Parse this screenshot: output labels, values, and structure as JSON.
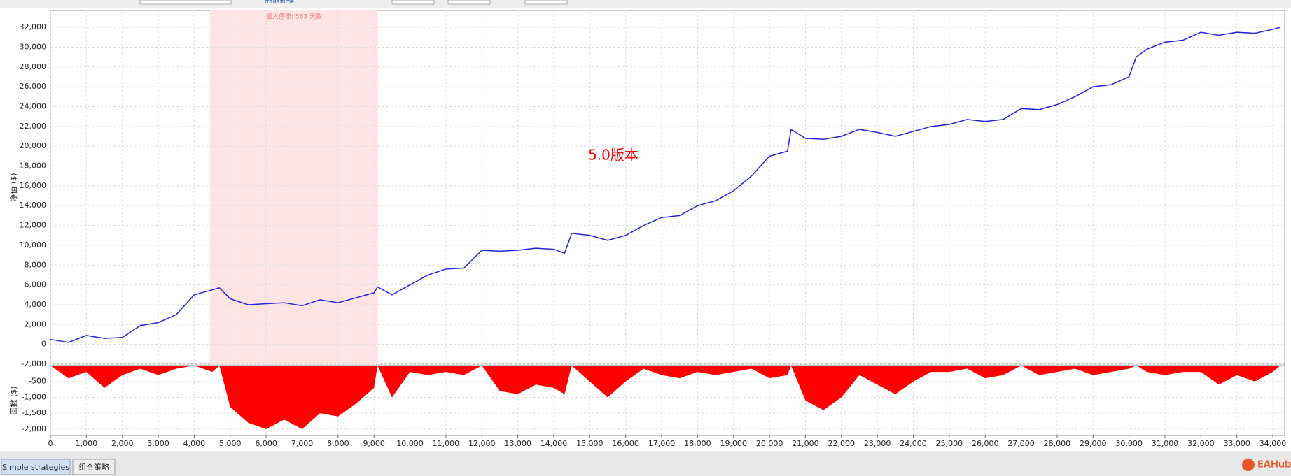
{
  "toolbar": {
    "labels": [
      "trades",
      "time"
    ]
  },
  "tabs": [
    "Simple strategies",
    "组合策略"
  ],
  "logo": "EAHub",
  "chart_data": [
    {
      "type": "line",
      "ylabel": "净值 ($)",
      "color": "#2222dd",
      "grid": true,
      "annotation": "5.0版本",
      "highlight": {
        "label": "最大停滞: 563 天数",
        "x": [
          4440,
          9110
        ],
        "color": "#ffe4e4"
      },
      "x": [
        0,
        500,
        1000,
        1500,
        2000,
        2500,
        3000,
        3500,
        4000,
        4500,
        4700,
        5000,
        5500,
        6000,
        6500,
        7000,
        7500,
        8000,
        8500,
        9000,
        9100,
        9500,
        10000,
        10500,
        11000,
        11500,
        12000,
        12500,
        13000,
        13500,
        14000,
        14300,
        14500,
        15000,
        15500,
        16000,
        16500,
        17000,
        17500,
        18000,
        18500,
        19000,
        19500,
        20000,
        20500,
        20600,
        21000,
        21500,
        22000,
        22500,
        23000,
        23500,
        24000,
        24500,
        25000,
        25500,
        26000,
        26500,
        27000,
        27500,
        28000,
        28500,
        29000,
        29500,
        30000,
        30200,
        30500,
        31000,
        31500,
        32000,
        32500,
        33000,
        33500,
        34000,
        34200
      ],
      "values": [
        500,
        200,
        900,
        600,
        700,
        1900,
        2200,
        3000,
        5000,
        5500,
        5700,
        4600,
        4000,
        4100,
        4200,
        3900,
        4500,
        4200,
        4700,
        5200,
        5800,
        5000,
        6000,
        7000,
        7600,
        7700,
        9500,
        9400,
        9500,
        9700,
        9600,
        9200,
        11200,
        11000,
        10500,
        11000,
        12000,
        12800,
        13000,
        14000,
        14500,
        15500,
        17000,
        19000,
        19500,
        21700,
        20800,
        20700,
        21000,
        21700,
        21400,
        21000,
        21500,
        22000,
        22200,
        22700,
        22500,
        22700,
        23800,
        23700,
        24200,
        25000,
        26000,
        26200,
        27000,
        29000,
        29800,
        30500,
        30700,
        31500,
        31200,
        31500,
        31400,
        31800,
        32000
      ],
      "xlim": [
        0,
        34330
      ],
      "ylim": [
        -2000,
        33700
      ],
      "yticks": [
        {
          "value": -2000,
          "label": "-2,000"
        },
        0,
        {
          "value": 2000,
          "label": "2,000"
        },
        {
          "value": 4000,
          "label": "4,000"
        },
        {
          "value": 6000,
          "label": "6,000"
        },
        {
          "value": 8000,
          "label": "8,000"
        },
        {
          "value": 10000,
          "label": "10,000"
        },
        {
          "value": 12000,
          "label": "12,000"
        },
        {
          "value": 14000,
          "label": "14,000"
        },
        {
          "value": 16000,
          "label": "16,000"
        },
        {
          "value": 18000,
          "label": "18,000"
        },
        {
          "value": 20000,
          "label": "20,000"
        },
        {
          "value": 22000,
          "label": "22,000"
        },
        {
          "value": 24000,
          "label": "24,000"
        },
        {
          "value": 26000,
          "label": "26,000"
        },
        {
          "value": 28000,
          "label": "28,000"
        },
        {
          "value": 30000,
          "label": "30,000"
        },
        {
          "value": 32000,
          "label": "32,000"
        }
      ]
    },
    {
      "type": "area",
      "ylabel": "回撤 ($)",
      "color": "#ff0000",
      "grid": true,
      "x": [
        0,
        500,
        1000,
        1500,
        2000,
        2500,
        3000,
        3500,
        4000,
        4500,
        4700,
        5000,
        5500,
        6000,
        6500,
        7000,
        7500,
        8000,
        8500,
        9000,
        9100,
        9500,
        10000,
        10500,
        11000,
        11500,
        12000,
        12500,
        13000,
        13500,
        14000,
        14300,
        14500,
        15000,
        15500,
        16000,
        16500,
        17000,
        17500,
        18000,
        18500,
        19000,
        19500,
        20000,
        20500,
        20600,
        21000,
        21500,
        22000,
        22500,
        23000,
        23500,
        24000,
        24500,
        25000,
        25500,
        26000,
        26500,
        27000,
        27500,
        28000,
        28500,
        29000,
        29500,
        30000,
        30200,
        30500,
        31000,
        31500,
        32000,
        32500,
        33000,
        33500,
        34000,
        34200
      ],
      "values": [
        0,
        -400,
        -200,
        -700,
        -300,
        -100,
        -300,
        -100,
        0,
        -200,
        0,
        -1300,
        -1800,
        -2000,
        -1700,
        -2000,
        -1500,
        -1600,
        -1200,
        -700,
        0,
        -1000,
        -200,
        -300,
        -200,
        -300,
        0,
        -800,
        -900,
        -600,
        -700,
        -900,
        0,
        -500,
        -1000,
        -500,
        -100,
        -300,
        -400,
        -200,
        -300,
        -200,
        -100,
        -400,
        -300,
        0,
        -1100,
        -1400,
        -1000,
        -300,
        -600,
        -900,
        -500,
        -200,
        -200,
        -100,
        -400,
        -300,
        0,
        -300,
        -200,
        -100,
        -300,
        -200,
        -100,
        0,
        -200,
        -300,
        -200,
        -200,
        -600,
        -300,
        -500,
        -200,
        0
      ],
      "xlim": [
        0,
        34330
      ],
      "ylim": [
        -2200,
        0
      ],
      "yticks": [
        {
          "value": -2000,
          "label": "-2,000"
        },
        {
          "value": -1500,
          "label": "-1,500"
        },
        {
          "value": -1000,
          "label": "-1,000"
        },
        -500
      ],
      "xticks": [
        0,
        {
          "value": 1000,
          "label": "1,000"
        },
        {
          "value": 2000,
          "label": "2,000"
        },
        {
          "value": 3000,
          "label": "3,000"
        },
        {
          "value": 4000,
          "label": "4,000"
        },
        {
          "value": 5000,
          "label": "5,000"
        },
        {
          "value": 6000,
          "label": "6,000"
        },
        {
          "value": 7000,
          "label": "7,000"
        },
        {
          "value": 8000,
          "label": "8,000"
        },
        {
          "value": 9000,
          "label": "9,000"
        },
        {
          "value": 10000,
          "label": "10,000"
        },
        {
          "value": 11000,
          "label": "11,000"
        },
        {
          "value": 12000,
          "label": "12,000"
        },
        {
          "value": 13000,
          "label": "13,000"
        },
        {
          "value": 14000,
          "label": "14,000"
        },
        {
          "value": 15000,
          "label": "15,000"
        },
        {
          "value": 16000,
          "label": "16,000"
        },
        {
          "value": 17000,
          "label": "17,000"
        },
        {
          "value": 18000,
          "label": "18,000"
        },
        {
          "value": 19000,
          "label": "19,000"
        },
        {
          "value": 20000,
          "label": "20,000"
        },
        {
          "value": 21000,
          "label": "21,000"
        },
        {
          "value": 22000,
          "label": "22,000"
        },
        {
          "value": 23000,
          "label": "23,000"
        },
        {
          "value": 24000,
          "label": "24,000"
        },
        {
          "value": 25000,
          "label": "25,000"
        },
        {
          "value": 26000,
          "label": "26,000"
        },
        {
          "value": 27000,
          "label": "27,000"
        },
        {
          "value": 28000,
          "label": "28,000"
        },
        {
          "value": 29000,
          "label": "29,000"
        },
        {
          "value": 30000,
          "label": "30,000"
        },
        {
          "value": 31000,
          "label": "31,000"
        },
        {
          "value": 32000,
          "label": "32,000"
        },
        {
          "value": 33000,
          "label": "33,000"
        },
        {
          "value": 34000,
          "label": "34,000"
        }
      ]
    }
  ]
}
